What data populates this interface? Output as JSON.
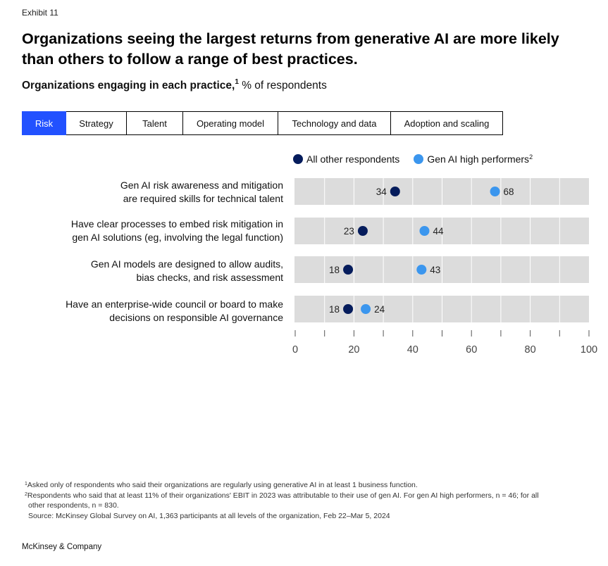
{
  "exhibit": "Exhibit 11",
  "title": "Organizations seeing the largest returns from generative AI are more likely than others to follow a range of best practices.",
  "subtitle": {
    "bold": "Organizations engaging in each practice,",
    "sup": "1",
    "rest": " % of respondents"
  },
  "tabs": [
    {
      "label": "Risk",
      "active": true
    },
    {
      "label": "Strategy",
      "active": false
    },
    {
      "label": "Talent",
      "active": false
    },
    {
      "label": "Operating model",
      "active": false
    },
    {
      "label": "Technology and data",
      "active": false
    },
    {
      "label": "Adoption and scaling",
      "active": false
    }
  ],
  "legend": {
    "others": "All other respondents",
    "high": "Gen AI high performers",
    "high_sup": "2"
  },
  "colors": {
    "others": "#051c5c",
    "high": "#3b96ee",
    "band": "#dcdcdc",
    "active_tab": "#2251ff"
  },
  "chart_data": {
    "type": "dot",
    "categories": [
      [
        "Gen AI risk awareness and mitigation",
        "are required skills for technical talent"
      ],
      [
        "Have clear processes to embed risk mitigation in",
        "gen AI solutions (eg, involving the legal function)"
      ],
      [
        "Gen AI models are designed to allow audits,",
        "bias checks, and risk assessment"
      ],
      [
        "Have an enterprise-wide council or board to make",
        "decisions on responsible AI governance"
      ]
    ],
    "series": [
      {
        "name": "All other respondents",
        "values": [
          34,
          23,
          18,
          18
        ]
      },
      {
        "name": "Gen AI high performers",
        "values": [
          68,
          44,
          43,
          24
        ]
      }
    ],
    "xlim": [
      0,
      100
    ],
    "xticks": [
      0,
      20,
      40,
      60,
      80,
      100
    ],
    "grid": true,
    "legend": "top"
  },
  "footnotes": [
    {
      "sup": "1",
      "text": "Asked only of respondents who said their organizations are regularly using generative AI in at least 1 business function."
    },
    {
      "sup": "2",
      "text": "Respondents who said that at least 11% of their organizations' EBIT in 2023 was attributable to their use of gen AI. For gen AI high performers, n = 46; for all"
    },
    {
      "sup": "",
      "text": "other respondents, n = 830."
    },
    {
      "sup": "",
      "text": "Source: McKinsey Global Survey on AI, 1,363 participants at all levels of the organization, Feb 22–Mar 5, 2024"
    }
  ],
  "brand": "McKinsey & Company"
}
